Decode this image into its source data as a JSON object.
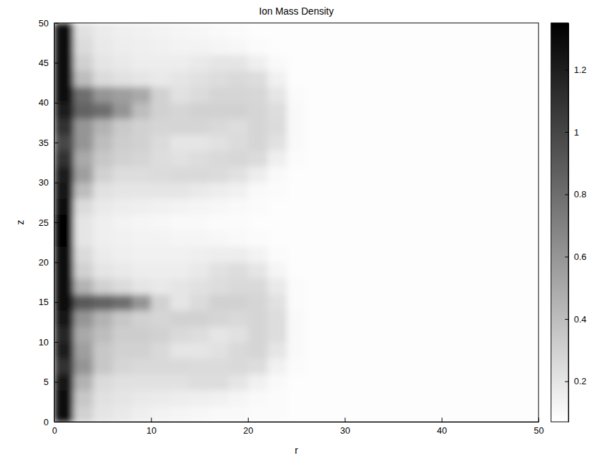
{
  "chart_data": {
    "type": "heatmap",
    "title": "Ion Mass Density",
    "x_label": "r",
    "y_label": "z",
    "xlim": [
      0,
      50
    ],
    "ylim": [
      0,
      50
    ],
    "xticks": [
      0,
      10,
      20,
      30,
      40,
      50
    ],
    "yticks": [
      0,
      5,
      10,
      15,
      20,
      25,
      30,
      35,
      40,
      45,
      50
    ],
    "x": [
      1,
      3,
      5,
      7,
      9,
      11,
      13,
      15,
      17,
      19,
      21,
      23,
      25,
      27,
      29,
      31,
      33,
      35,
      37,
      39,
      41,
      43,
      45,
      47,
      49
    ],
    "y": [
      1,
      3,
      5,
      7,
      9,
      11,
      13,
      15,
      17,
      19,
      21,
      23,
      25,
      27,
      29,
      31,
      33,
      35,
      37,
      39,
      41,
      43,
      45,
      47,
      49
    ],
    "values": [
      [
        1.3,
        0.3,
        0.2,
        0.18,
        0.15,
        0.13,
        0.12,
        0.11,
        0.1,
        0.1,
        0.09,
        0.09,
        0.08,
        0.08,
        0.08,
        0.08,
        0.08,
        0.08,
        0.08,
        0.08,
        0.08,
        0.08,
        0.08,
        0.08,
        0.08
      ],
      [
        1.3,
        0.35,
        0.22,
        0.2,
        0.18,
        0.17,
        0.16,
        0.15,
        0.14,
        0.12,
        0.1,
        0.09,
        0.08,
        0.08,
        0.08,
        0.08,
        0.08,
        0.08,
        0.08,
        0.08,
        0.08,
        0.08,
        0.08,
        0.08,
        0.08
      ],
      [
        1.25,
        0.45,
        0.25,
        0.22,
        0.22,
        0.22,
        0.22,
        0.24,
        0.24,
        0.2,
        0.14,
        0.1,
        0.08,
        0.08,
        0.08,
        0.08,
        0.08,
        0.08,
        0.08,
        0.08,
        0.08,
        0.08,
        0.08,
        0.08,
        0.08
      ],
      [
        1.1,
        0.6,
        0.35,
        0.28,
        0.26,
        0.26,
        0.26,
        0.25,
        0.25,
        0.26,
        0.24,
        0.14,
        0.09,
        0.08,
        0.08,
        0.08,
        0.08,
        0.08,
        0.08,
        0.08,
        0.08,
        0.08,
        0.08,
        0.08,
        0.08
      ],
      [
        1.2,
        0.55,
        0.35,
        0.3,
        0.3,
        0.26,
        0.2,
        0.2,
        0.22,
        0.26,
        0.28,
        0.2,
        0.1,
        0.08,
        0.08,
        0.08,
        0.08,
        0.08,
        0.08,
        0.08,
        0.08,
        0.08,
        0.08,
        0.08,
        0.08
      ],
      [
        1.15,
        0.5,
        0.4,
        0.32,
        0.32,
        0.3,
        0.26,
        0.24,
        0.2,
        0.22,
        0.28,
        0.24,
        0.1,
        0.08,
        0.08,
        0.08,
        0.08,
        0.08,
        0.08,
        0.08,
        0.08,
        0.08,
        0.08,
        0.08,
        0.08
      ],
      [
        1.25,
        0.6,
        0.45,
        0.35,
        0.3,
        0.28,
        0.3,
        0.3,
        0.28,
        0.26,
        0.28,
        0.24,
        0.1,
        0.08,
        0.08,
        0.08,
        0.08,
        0.08,
        0.08,
        0.08,
        0.08,
        0.08,
        0.08,
        0.08,
        0.08
      ],
      [
        1.3,
        0.9,
        0.85,
        0.8,
        0.6,
        0.3,
        0.2,
        0.25,
        0.3,
        0.3,
        0.28,
        0.22,
        0.09,
        0.08,
        0.08,
        0.08,
        0.08,
        0.08,
        0.08,
        0.08,
        0.08,
        0.08,
        0.08,
        0.08,
        0.08
      ],
      [
        1.3,
        0.45,
        0.3,
        0.25,
        0.2,
        0.18,
        0.2,
        0.22,
        0.24,
        0.26,
        0.26,
        0.18,
        0.09,
        0.08,
        0.08,
        0.08,
        0.08,
        0.08,
        0.08,
        0.08,
        0.08,
        0.08,
        0.08,
        0.08,
        0.08
      ],
      [
        1.3,
        0.3,
        0.2,
        0.18,
        0.16,
        0.16,
        0.16,
        0.18,
        0.22,
        0.24,
        0.2,
        0.12,
        0.08,
        0.08,
        0.08,
        0.08,
        0.08,
        0.08,
        0.08,
        0.08,
        0.08,
        0.08,
        0.08,
        0.08,
        0.08
      ],
      [
        1.3,
        0.25,
        0.17,
        0.15,
        0.14,
        0.14,
        0.14,
        0.15,
        0.16,
        0.16,
        0.13,
        0.09,
        0.08,
        0.08,
        0.08,
        0.08,
        0.08,
        0.08,
        0.08,
        0.08,
        0.08,
        0.08,
        0.08,
        0.08,
        0.08
      ],
      [
        1.35,
        0.2,
        0.15,
        0.14,
        0.13,
        0.13,
        0.12,
        0.12,
        0.11,
        0.1,
        0.09,
        0.08,
        0.08,
        0.08,
        0.08,
        0.08,
        0.08,
        0.08,
        0.08,
        0.08,
        0.08,
        0.08,
        0.08,
        0.08,
        0.08
      ],
      [
        1.35,
        0.2,
        0.15,
        0.13,
        0.12,
        0.11,
        0.1,
        0.1,
        0.09,
        0.09,
        0.08,
        0.08,
        0.08,
        0.08,
        0.08,
        0.08,
        0.08,
        0.08,
        0.08,
        0.08,
        0.08,
        0.08,
        0.08,
        0.08,
        0.08
      ],
      [
        1.3,
        0.25,
        0.18,
        0.16,
        0.15,
        0.14,
        0.13,
        0.12,
        0.11,
        0.1,
        0.09,
        0.08,
        0.08,
        0.08,
        0.08,
        0.08,
        0.08,
        0.08,
        0.08,
        0.08,
        0.08,
        0.08,
        0.08,
        0.08,
        0.08
      ],
      [
        1.25,
        0.4,
        0.22,
        0.2,
        0.2,
        0.2,
        0.2,
        0.18,
        0.16,
        0.14,
        0.1,
        0.09,
        0.08,
        0.08,
        0.08,
        0.08,
        0.08,
        0.08,
        0.08,
        0.08,
        0.08,
        0.08,
        0.08,
        0.08,
        0.08
      ],
      [
        1.2,
        0.55,
        0.3,
        0.24,
        0.24,
        0.25,
        0.26,
        0.26,
        0.25,
        0.22,
        0.16,
        0.1,
        0.08,
        0.08,
        0.08,
        0.08,
        0.08,
        0.08,
        0.08,
        0.08,
        0.08,
        0.08,
        0.08,
        0.08,
        0.08
      ],
      [
        1.1,
        0.5,
        0.35,
        0.3,
        0.28,
        0.24,
        0.22,
        0.24,
        0.26,
        0.27,
        0.25,
        0.15,
        0.09,
        0.08,
        0.08,
        0.08,
        0.08,
        0.08,
        0.08,
        0.08,
        0.08,
        0.08,
        0.08,
        0.08,
        0.08
      ],
      [
        1,
        0.6,
        0.4,
        0.32,
        0.3,
        0.25,
        0.2,
        0.2,
        0.22,
        0.25,
        0.28,
        0.22,
        0.1,
        0.08,
        0.08,
        0.08,
        0.08,
        0.08,
        0.08,
        0.08,
        0.08,
        0.08,
        0.08,
        0.08,
        0.08
      ],
      [
        1.1,
        0.6,
        0.45,
        0.34,
        0.3,
        0.28,
        0.28,
        0.28,
        0.26,
        0.24,
        0.28,
        0.25,
        0.1,
        0.08,
        0.08,
        0.08,
        0.08,
        0.08,
        0.08,
        0.08,
        0.08,
        0.08,
        0.08,
        0.08,
        0.08
      ],
      [
        1.2,
        0.85,
        0.8,
        0.6,
        0.4,
        0.3,
        0.28,
        0.3,
        0.3,
        0.3,
        0.28,
        0.24,
        0.1,
        0.08,
        0.08,
        0.08,
        0.08,
        0.08,
        0.08,
        0.08,
        0.08,
        0.08,
        0.08,
        0.08,
        0.08
      ],
      [
        1.3,
        0.8,
        0.6,
        0.55,
        0.5,
        0.3,
        0.22,
        0.25,
        0.28,
        0.28,
        0.27,
        0.2,
        0.09,
        0.08,
        0.08,
        0.08,
        0.08,
        0.08,
        0.08,
        0.08,
        0.08,
        0.08,
        0.08,
        0.08,
        0.08
      ],
      [
        1.3,
        0.4,
        0.25,
        0.22,
        0.2,
        0.18,
        0.2,
        0.22,
        0.24,
        0.26,
        0.24,
        0.14,
        0.08,
        0.08,
        0.08,
        0.08,
        0.08,
        0.08,
        0.08,
        0.08,
        0.08,
        0.08,
        0.08,
        0.08,
        0.08
      ],
      [
        1.3,
        0.3,
        0.2,
        0.18,
        0.16,
        0.16,
        0.16,
        0.18,
        0.2,
        0.2,
        0.15,
        0.1,
        0.08,
        0.08,
        0.08,
        0.08,
        0.08,
        0.08,
        0.08,
        0.08,
        0.08,
        0.08,
        0.08,
        0.08,
        0.08
      ],
      [
        1.3,
        0.25,
        0.18,
        0.16,
        0.15,
        0.14,
        0.13,
        0.13,
        0.12,
        0.11,
        0.09,
        0.08,
        0.08,
        0.08,
        0.08,
        0.08,
        0.08,
        0.08,
        0.08,
        0.08,
        0.08,
        0.08,
        0.08,
        0.08,
        0.08
      ],
      [
        1.3,
        0.22,
        0.17,
        0.15,
        0.14,
        0.13,
        0.12,
        0.11,
        0.1,
        0.09,
        0.08,
        0.08,
        0.08,
        0.08,
        0.08,
        0.08,
        0.08,
        0.08,
        0.08,
        0.08,
        0.08,
        0.08,
        0.08,
        0.08,
        0.08
      ]
    ],
    "colorbar": {
      "range": [
        0.07,
        1.35
      ],
      "ticks": [
        0.2,
        0.4,
        0.6,
        0.8,
        1,
        1.2
      ]
    }
  }
}
